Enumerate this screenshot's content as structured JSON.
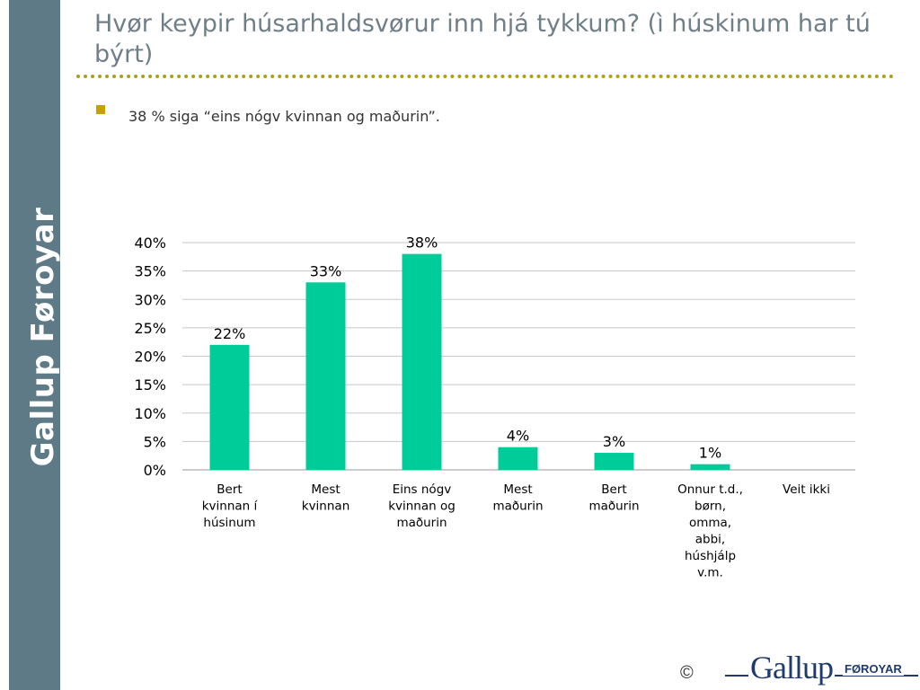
{
  "sidebar": {
    "label": "Gallup Føroyar"
  },
  "slide": {
    "title": "Hvør keypir húsarhaldsvørur inn hjá tykkum? (ì húskinum har tú býrt)",
    "bullet": "38 % siga “eins nógv kvinnan og maðurin”."
  },
  "footer": {
    "copyright": "©",
    "logo_main": "Gallup",
    "logo_sub": "FØROYAR"
  },
  "colors": {
    "bar": "#00cc99",
    "sidebar": "#5f7a87",
    "title": "#6f7f88",
    "dots": "#a8a020"
  },
  "chart_data": {
    "type": "bar",
    "categories": [
      [
        "Bert",
        "kvinnan í",
        "húsinum"
      ],
      [
        "Mest",
        "kvinnan"
      ],
      [
        "Eins nógv",
        "kvinnan og",
        "maðurin"
      ],
      [
        "Mest",
        "maðurin"
      ],
      [
        "Bert",
        "maðurin"
      ],
      [
        "Onnur t.d.,",
        "børn,",
        "omma,",
        "abbi,",
        "húshjálp",
        "v.m."
      ],
      [
        "Veit ikki"
      ]
    ],
    "values": [
      22,
      33,
      38,
      4,
      3,
      1,
      0
    ],
    "data_labels": [
      "22%",
      "33%",
      "38%",
      "4%",
      "3%",
      "1%",
      ""
    ],
    "y_ticks": [
      "0%",
      "5%",
      "10%",
      "15%",
      "20%",
      "25%",
      "30%",
      "35%",
      "40%"
    ],
    "ylim": [
      0,
      40
    ],
    "grid": true,
    "legend": "none"
  }
}
